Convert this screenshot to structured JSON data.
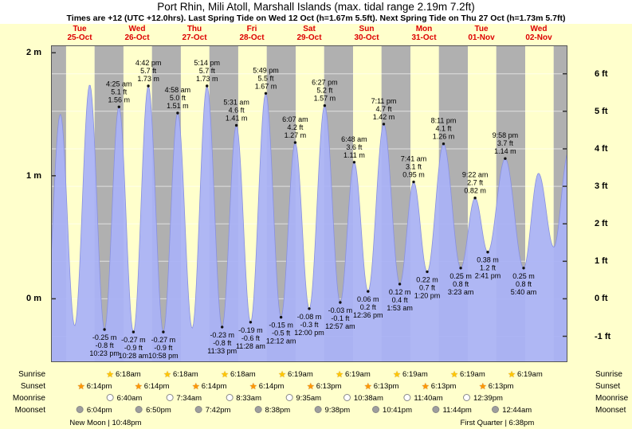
{
  "header": {
    "title": "Port Rhin, Mili Atoll, Marshall Islands (max. tidal range 2.19m 7.2ft)",
    "subtitle": "Times are +12 (UTC +12.0hrs). Last Spring Tide on Wed 12 Oct (h=1.67m 5.5ft). Next Spring Tide on Thu 27 Oct (h=1.73m 5.7ft)"
  },
  "days": [
    {
      "weekday": "Tue",
      "date": "25-Oct"
    },
    {
      "weekday": "Wed",
      "date": "26-Oct"
    },
    {
      "weekday": "Thu",
      "date": "27-Oct"
    },
    {
      "weekday": "Fri",
      "date": "28-Oct"
    },
    {
      "weekday": "Sat",
      "date": "29-Oct"
    },
    {
      "weekday": "Sun",
      "date": "30-Oct"
    },
    {
      "weekday": "Mon",
      "date": "31-Oct"
    },
    {
      "weekday": "Tue",
      "date": "01-Nov"
    },
    {
      "weekday": "Wed",
      "date": "02-Nov"
    }
  ],
  "axes": {
    "left": [
      {
        "label": "2 m",
        "m": 2
      },
      {
        "label": "1 m",
        "m": 1
      },
      {
        "label": "0 m",
        "m": 0
      }
    ],
    "right": [
      {
        "label": "6 ft",
        "ft": 6
      },
      {
        "label": "5 ft",
        "ft": 5
      },
      {
        "label": "4 ft",
        "ft": 4
      },
      {
        "label": "3 ft",
        "ft": 3
      },
      {
        "label": "2 ft",
        "ft": 2
      },
      {
        "label": "1 ft",
        "ft": 1
      },
      {
        "label": "0 ft",
        "ft": 0
      },
      {
        "label": "-1 ft",
        "ft": -1
      }
    ]
  },
  "colors": {
    "page_bg": "#ffffcc",
    "day_band": "#ffffcc",
    "night_band": "#b0b0b0",
    "tide_fill": "#a9b1f6",
    "curve_line": "#8890e0",
    "header_red": "#dd0000",
    "grid_line": "#ffffff",
    "plot_border": "#555555",
    "marker": "#111111"
  },
  "chart_data": {
    "type": "area",
    "title": "Port Rhin, Mili Atoll, Marshall Islands (max. tidal range 2.19m 7.2ft)",
    "xlabel": "Days Tue 25-Oct through Wed 02-Nov (hours from Tue 25-Oct 00:00, UTC+12)",
    "ylabel_left": "height (m)",
    "ylabel_right": "height (ft)",
    "x_range_hours": [
      0,
      216
    ],
    "y_range_m": [
      -0.515,
      2.06
    ],
    "high_tides": [
      {
        "time": "4:25 am",
        "ft": "5.1 ft",
        "m": "1.56 m",
        "t": 28.42,
        "value_m": 1.56
      },
      {
        "time": "4:42 pm",
        "ft": "5.7 ft",
        "m": "1.73 m",
        "t": 40.7,
        "value_m": 1.73
      },
      {
        "time": "4:58 am",
        "ft": "5.0 ft",
        "m": "1.51 m",
        "t": 52.97,
        "value_m": 1.51
      },
      {
        "time": "5:14 pm",
        "ft": "5.7 ft",
        "m": "1.73 m",
        "t": 65.23,
        "value_m": 1.73
      },
      {
        "time": "5:31 am",
        "ft": "4.6 ft",
        "m": "1.41 m",
        "t": 77.52,
        "value_m": 1.41
      },
      {
        "time": "5:49 pm",
        "ft": "5.5 ft",
        "m": "1.67 m",
        "t": 89.82,
        "value_m": 1.67
      },
      {
        "time": "6:07 am",
        "ft": "4.2 ft",
        "m": "1.27 m",
        "t": 102.12,
        "value_m": 1.27
      },
      {
        "time": "6:27 pm",
        "ft": "5.2 ft",
        "m": "1.57 m",
        "t": 114.45,
        "value_m": 1.57
      },
      {
        "time": "6:48 am",
        "ft": "3.6 ft",
        "m": "1.11 m",
        "t": 126.8,
        "value_m": 1.11
      },
      {
        "time": "7:11 pm",
        "ft": "4.7 ft",
        "m": "1.42 m",
        "t": 139.18,
        "value_m": 1.42
      },
      {
        "time": "7:41 am",
        "ft": "3.1 ft",
        "m": "0.95 m",
        "t": 151.68,
        "value_m": 0.95
      },
      {
        "time": "8:11 pm",
        "ft": "4.1 ft",
        "m": "1.26 m",
        "t": 164.18,
        "value_m": 1.26
      },
      {
        "time": "9:22 am",
        "ft": "2.7 ft",
        "m": "0.82 m",
        "t": 177.37,
        "value_m": 0.82
      },
      {
        "time": "9:58 pm",
        "ft": "3.7 ft",
        "m": "1.14 m",
        "t": 189.97,
        "value_m": 1.14
      }
    ],
    "low_tides": [
      {
        "m": "-0.25 m",
        "ft": "-0.8 ft",
        "time": "10:23 pm",
        "t": 22.38,
        "value_m": -0.25
      },
      {
        "m": "-0.27 m",
        "ft": "-0.9 ft",
        "time": "10:28 am",
        "t": 34.47,
        "value_m": -0.27
      },
      {
        "m": "-0.27 m",
        "ft": "-0.9 ft",
        "time": "10:58 pm",
        "t": 46.97,
        "value_m": -0.27
      },
      {
        "m": "-0.23 m",
        "ft": "-0.8 ft",
        "time": "11:33 pm",
        "t": 71.55,
        "value_m": -0.23
      },
      {
        "m": "-0.19 m",
        "ft": "-0.6 ft",
        "time": "11:28 am",
        "t": 83.47,
        "value_m": -0.19
      },
      {
        "m": "-0.15 m",
        "ft": "-0.5 ft",
        "time": "12:12 am",
        "t": 96.2,
        "value_m": -0.15
      },
      {
        "m": "-0.08 m",
        "ft": "-0.3 ft",
        "time": "12:00 pm",
        "t": 108.0,
        "value_m": -0.08
      },
      {
        "m": "-0.03 m",
        "ft": "-0.1 ft",
        "time": "12:57 am",
        "t": 120.95,
        "value_m": -0.03
      },
      {
        "m": "0.06 m",
        "ft": "0.2 ft",
        "time": "12:36 pm",
        "t": 132.6,
        "value_m": 0.06
      },
      {
        "m": "0.12 m",
        "ft": "0.4 ft",
        "time": "1:53 am",
        "t": 145.88,
        "value_m": 0.12
      },
      {
        "m": "0.22 m",
        "ft": "0.7 ft",
        "time": "1:20 pm",
        "t": 157.33,
        "value_m": 0.22
      },
      {
        "m": "0.25 m",
        "ft": "0.8 ft",
        "time": "3:23 am",
        "t": 171.38,
        "value_m": 0.25
      },
      {
        "m": "0.38 m",
        "ft": "1.2 ft",
        "time": "2:41 pm",
        "t": 182.68,
        "value_m": 0.38
      },
      {
        "m": "0.25 m",
        "ft": "0.8 ft",
        "time": "5:40 am",
        "t": 197.67,
        "value_m": 0.25
      }
    ],
    "curve_boundary_events": [
      [
        -2.3,
        -0.2
      ],
      [
        3.9,
        1.5
      ],
      [
        9.9,
        -0.22
      ],
      [
        16.2,
        1.74
      ],
      [
        59.05,
        -0.24
      ],
      [
        203.9,
        1.02
      ],
      [
        210.3,
        0.42
      ],
      [
        216.5,
        1.2
      ]
    ],
    "night_intervals_hours": [
      [
        0,
        6.3
      ],
      [
        18.23,
        30.3
      ],
      [
        42.23,
        54.3
      ],
      [
        66.23,
        78.3
      ],
      [
        90.23,
        102.32
      ],
      [
        114.22,
        126.32
      ],
      [
        138.22,
        150.32
      ],
      [
        162.22,
        174.32
      ],
      [
        186.22,
        198.32
      ],
      [
        210.22,
        216
      ]
    ]
  },
  "legend": {
    "rows": [
      {
        "id": "sunrise",
        "label": "Sunrise",
        "icon": "sunrise-star-icon",
        "entries": [
          {
            "time": "6:18am",
            "t": 30.3
          },
          {
            "time": "6:18am",
            "t": 54.3
          },
          {
            "time": "6:18am",
            "t": 78.3
          },
          {
            "time": "6:19am",
            "t": 102.32
          },
          {
            "time": "6:19am",
            "t": 126.32
          },
          {
            "time": "6:19am",
            "t": 150.32
          },
          {
            "time": "6:19am",
            "t": 174.32
          },
          {
            "time": "6:19am",
            "t": 198.32
          }
        ]
      },
      {
        "id": "sunset",
        "label": "Sunset",
        "icon": "sunset-star-icon",
        "entries": [
          {
            "time": "6:14pm",
            "t": 18.23
          },
          {
            "time": "6:14pm",
            "t": 42.23
          },
          {
            "time": "6:14pm",
            "t": 66.23
          },
          {
            "time": "6:14pm",
            "t": 90.23
          },
          {
            "time": "6:13pm",
            "t": 114.22
          },
          {
            "time": "6:13pm",
            "t": 138.22
          },
          {
            "time": "6:13pm",
            "t": 162.22
          },
          {
            "time": "6:13pm",
            "t": 186.22
          }
        ]
      },
      {
        "id": "moonrise",
        "label": "Moonrise",
        "icon": "moonrise-circle-icon",
        "entries": [
          {
            "time": "6:40am",
            "t": 30.67
          },
          {
            "time": "7:34am",
            "t": 55.57
          },
          {
            "time": "8:33am",
            "t": 80.55
          },
          {
            "time": "9:35am",
            "t": 105.58
          },
          {
            "time": "10:38am",
            "t": 130.63
          },
          {
            "time": "11:40am",
            "t": 155.67
          },
          {
            "time": "12:39pm",
            "t": 180.65
          }
        ]
      },
      {
        "id": "moonset",
        "label": "Moonset",
        "icon": "moonset-circle-icon",
        "entries": [
          {
            "time": "6:04pm",
            "t": 18.07
          },
          {
            "time": "6:50pm",
            "t": 42.83
          },
          {
            "time": "7:42pm",
            "t": 67.7
          },
          {
            "time": "8:38pm",
            "t": 92.63
          },
          {
            "time": "9:38pm",
            "t": 117.63
          },
          {
            "time": "10:41pm",
            "t": 142.68
          },
          {
            "time": "11:44pm",
            "t": 167.73
          },
          {
            "time": "12:44am",
            "t": 192.73
          }
        ]
      }
    ],
    "moon_phases": [
      {
        "label": "New Moon | 10:48pm",
        "t": 22.8
      },
      {
        "label": "First Quarter | 6:38pm",
        "t": 186.63
      }
    ]
  }
}
